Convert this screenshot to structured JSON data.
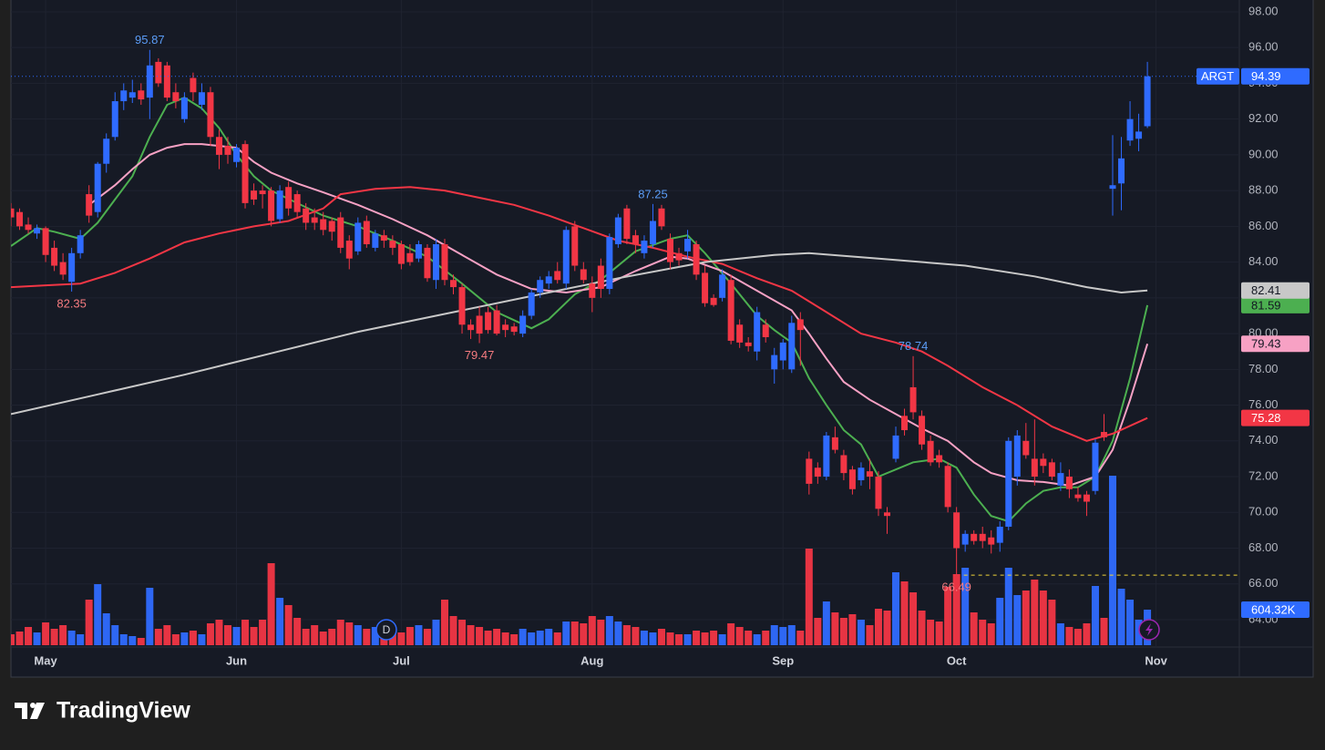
{
  "chart_data": {
    "type": "candlestick",
    "symbol": "ARGT",
    "up_color": "#2f6bff",
    "down_color": "#f23645",
    "grid": true,
    "xlim": [
      0,
      141.6
    ],
    "xticks": [
      {
        "value": 4,
        "label": "May"
      },
      {
        "value": 26,
        "label": "Jun"
      },
      {
        "value": 45,
        "label": "Jul"
      },
      {
        "value": 67,
        "label": "Aug"
      },
      {
        "value": 89,
        "label": "Sep"
      },
      {
        "value": 109,
        "label": "Oct"
      },
      {
        "value": 132,
        "label": "Nov"
      }
    ],
    "ylim": [
      62.47,
      98.66
    ],
    "yticks": [
      {
        "value": 64,
        "label": "64.00"
      },
      {
        "value": 66,
        "label": "66.00"
      },
      {
        "value": 68,
        "label": "68.00"
      },
      {
        "value": 70,
        "label": "70.00"
      },
      {
        "value": 72,
        "label": "72.00"
      },
      {
        "value": 74,
        "label": "74.00"
      },
      {
        "value": 76,
        "label": "76.00"
      },
      {
        "value": 78,
        "label": "78.00"
      },
      {
        "value": 80,
        "label": "80.00"
      },
      {
        "value": 82,
        "label": "82.00"
      },
      {
        "value": 84,
        "label": "84.00"
      },
      {
        "value": 86,
        "label": "86.00"
      },
      {
        "value": 88,
        "label": "88.00"
      },
      {
        "value": 90,
        "label": "90.00"
      },
      {
        "value": 92,
        "label": "92.00"
      },
      {
        "value": 94,
        "label": "94.00"
      },
      {
        "value": 96,
        "label": "96.00"
      },
      {
        "value": 98,
        "label": "98.00"
      }
    ],
    "candles": {
      "open": [
        87,
        86.8,
        86.1,
        85.6,
        85.9,
        84.8,
        84.0,
        82.9,
        84.5,
        87.8,
        86.8,
        89.5,
        91.0,
        93.0,
        93.2,
        93.6,
        93.2,
        95.2,
        95.0,
        93.5,
        92.0,
        94.3,
        92.8,
        93.5,
        91.0,
        90.5,
        89.6,
        90.6,
        88.0,
        88.0,
        88.0,
        86.4,
        88.2,
        87.8,
        87.0,
        86.5,
        86.4,
        86.3,
        86.5,
        85.2,
        84.6,
        86.3,
        84.8,
        85.5,
        85.2,
        85.0,
        84.5,
        84.2,
        84.8,
        83.0,
        85.0,
        83.0,
        82.6,
        80.5,
        81.0,
        81.2,
        81.3,
        80.5,
        80.4,
        80.0,
        81.0,
        82.3,
        82.8,
        83.5,
        82.8,
        86.0,
        83.6,
        82.8,
        83.8,
        82.5,
        85.0,
        87.0,
        85.5,
        84.5,
        85.0,
        87.0,
        85.3,
        84.5,
        84.6,
        85.0,
        83.4,
        82.0,
        82.0,
        83.0,
        80.5,
        79.5,
        79.0,
        80.5,
        78.0,
        78.5,
        78.0,
        80.8,
        73.0,
        72.5,
        72.0,
        74.2,
        73.2,
        72.4,
        71.8,
        72.3,
        72.0,
        70.0,
        73.0,
        75.4,
        77.0,
        75.4,
        74.0,
        73.2,
        72.6,
        70.0,
        68.2,
        68.8,
        68.8,
        68.6,
        68.3,
        69.2,
        72.0,
        74.0,
        73.0,
        73.0,
        72.8,
        71.5,
        72.0,
        71.0,
        71.0,
        71.2,
        74.5,
        88.1,
        88.4,
        90.8,
        90.9,
        91.6
      ],
      "high": [
        87.3,
        87,
        86.5,
        86.1,
        86.0,
        85.2,
        84.5,
        84.8,
        85.8,
        88.3,
        89.6,
        91.2,
        93.5,
        94.0,
        94.2,
        94.0,
        95.87,
        95.4,
        95.2,
        94.0,
        93.5,
        94.6,
        94.0,
        93.8,
        91.4,
        91.0,
        90.6,
        90.8,
        88.4,
        88.3,
        88.2,
        88.3,
        88.5,
        88.0,
        87.3,
        87.0,
        86.8,
        86.5,
        86.8,
        85.5,
        86.5,
        86.6,
        85.8,
        85.8,
        85.5,
        85.2,
        85.0,
        85.2,
        85.0,
        85.3,
        85.3,
        83.3,
        82.8,
        80.8,
        81.5,
        81.5,
        81.6,
        80.8,
        80.6,
        81.3,
        82.5,
        83.2,
        83.5,
        84.0,
        86.0,
        86.3,
        84.0,
        83.2,
        84.2,
        85.6,
        86.7,
        87.2,
        85.8,
        85.5,
        87.25,
        87.2,
        85.6,
        84.8,
        85.8,
        85.2,
        83.8,
        82.2,
        83.6,
        83.3,
        80.8,
        79.8,
        81.5,
        80.8,
        79.2,
        79.7,
        81.0,
        81.2,
        73.4,
        72.8,
        74.5,
        74.8,
        73.5,
        72.6,
        72.8,
        73.0,
        72.3,
        70.3,
        74.8,
        75.8,
        78.74,
        75.7,
        74.3,
        73.5,
        72.8,
        70.3,
        69.0,
        69.0,
        69.2,
        69.0,
        69.5,
        74.2,
        74.6,
        75.0,
        75.2,
        73.3,
        73.0,
        72.8,
        72.4,
        71.4,
        71.2,
        74.1,
        75.5,
        91.1,
        91.0,
        93.0,
        92.3,
        95.2
      ],
      "low": [
        86,
        85.8,
        85.6,
        85.3,
        84.0,
        83.5,
        83.0,
        82.35,
        84.2,
        86.2,
        86.5,
        89.0,
        90.8,
        92.5,
        92.9,
        92.8,
        92.0,
        93.8,
        93.0,
        92.6,
        91.8,
        93.0,
        92.5,
        90.5,
        89.2,
        89.5,
        89.3,
        87.0,
        87.2,
        87.0,
        86.0,
        86.2,
        86.6,
        86.5,
        85.8,
        85.8,
        85.5,
        85.2,
        84.5,
        83.6,
        84.4,
        84.8,
        84.6,
        84.8,
        84.4,
        83.6,
        83.8,
        84.0,
        82.9,
        82.5,
        82.7,
        82.2,
        80.0,
        79.7,
        79.47,
        80.0,
        79.9,
        79.8,
        79.9,
        79.8,
        80.8,
        82.0,
        82.5,
        82.8,
        82.5,
        83.5,
        82.8,
        81.2,
        82.0,
        82.2,
        84.8,
        85.0,
        84.5,
        84.2,
        84.8,
        85.8,
        83.6,
        83.8,
        84.2,
        83.0,
        81.5,
        81.5,
        81.8,
        79.4,
        79.2,
        79.0,
        78.5,
        79.5,
        77.2,
        78.0,
        77.8,
        78.2,
        71.0,
        71.6,
        71.8,
        73.3,
        71.8,
        71.0,
        71.5,
        71.3,
        69.8,
        68.8,
        72.8,
        74.3,
        75.2,
        73.5,
        72.6,
        72.5,
        70.0,
        66.49,
        67.8,
        68.2,
        68.0,
        67.7,
        67.8,
        69.0,
        71.5,
        73.0,
        71.5,
        72.2,
        71.8,
        71.2,
        70.8,
        70.6,
        69.8,
        71.0,
        74.0,
        86.6,
        86.9,
        90.5,
        90.2,
        91.5
      ],
      "close": [
        86.5,
        86.0,
        85.8,
        85.9,
        84.4,
        83.8,
        83.3,
        84.5,
        85.5,
        86.6,
        89.5,
        90.9,
        93.0,
        93.6,
        93.5,
        93.1,
        95.0,
        94.0,
        93.2,
        93.0,
        93.2,
        93.5,
        93.5,
        91.0,
        90.0,
        90.0,
        90.4,
        87.3,
        87.5,
        87.8,
        86.3,
        88.0,
        87.0,
        86.8,
        86.2,
        86.2,
        85.8,
        85.7,
        84.8,
        84.2,
        86.2,
        85.0,
        85.6,
        85.2,
        84.8,
        83.9,
        84.0,
        85.0,
        83.1,
        85.0,
        83.0,
        82.6,
        80.5,
        80.2,
        80.0,
        80.2,
        80.0,
        80.2,
        80.1,
        81.0,
        82.3,
        83.0,
        83.2,
        83.0,
        85.8,
        83.8,
        83.0,
        82.0,
        82.5,
        85.4,
        86.5,
        85.3,
        85.0,
        85.2,
        86.3,
        86.0,
        84.0,
        84.1,
        85.3,
        83.3,
        81.7,
        81.6,
        83.3,
        79.6,
        79.5,
        79.3,
        81.2,
        79.8,
        78.8,
        79.5,
        80.6,
        80.2,
        71.6,
        72.0,
        74.3,
        73.5,
        72.2,
        71.3,
        72.5,
        72.0,
        70.2,
        69.8,
        74.3,
        74.6,
        75.6,
        73.8,
        72.8,
        72.8,
        70.3,
        68.0,
        68.8,
        68.4,
        68.4,
        68.2,
        69.2,
        74.0,
        74.3,
        73.2,
        72.0,
        72.6,
        72.0,
        72.2,
        71.3,
        70.8,
        70.6,
        73.9,
        74.2,
        88.3,
        89.8,
        92.0,
        91.3,
        94.39
      ]
    },
    "volume": {
      "ylim": [
        0,
        3875000
      ],
      "values": [
        186000,
        232500,
        310000,
        217000,
        387500,
        279000,
        341000,
        248000,
        186000,
        775000,
        1038500,
        542500,
        341000,
        186000,
        155000,
        124000,
        976500,
        279000,
        341000,
        186000,
        217000,
        248000,
        186000,
        372000,
        434000,
        341000,
        310000,
        434000,
        310000,
        434000,
        1395000,
        806000,
        682000,
        465000,
        279000,
        341000,
        232500,
        279000,
        434000,
        387500,
        341000,
        279000,
        310000,
        217000,
        279000,
        217000,
        310000,
        341000,
        279000,
        434000,
        775000,
        496000,
        434000,
        341000,
        310000,
        248000,
        279000,
        217000,
        186000,
        279000,
        217000,
        248000,
        279000,
        217000,
        403000,
        403000,
        372000,
        496000,
        434000,
        496000,
        403000,
        341000,
        310000,
        248000,
        217000,
        279000,
        217000,
        186000,
        186000,
        248000,
        217000,
        248000,
        186000,
        372000,
        310000,
        248000,
        186000,
        248000,
        341000,
        310000,
        341000,
        248000,
        1643000,
        465000,
        744000,
        558000,
        465000,
        527000,
        434000,
        341000,
        620000,
        589000,
        1240000,
        1085000,
        899000,
        589000,
        434000,
        403000,
        992000,
        1209000,
        1317500,
        558000,
        434000,
        372000,
        806000,
        1317500,
        852500,
        930000,
        1116000,
        930000,
        775000,
        372000,
        310000,
        279000,
        372000,
        1007500,
        465000,
        2883000,
        961000,
        775000,
        434000,
        604320
      ],
      "last_label": "604.32K"
    },
    "lines": [
      {
        "color": "#4caf50",
        "x": [
          0,
          3,
          5,
          8,
          10,
          12,
          14,
          16,
          18,
          20,
          22,
          24,
          26,
          28,
          30,
          33,
          36,
          40,
          44,
          48,
          52,
          56,
          60,
          62,
          65,
          68,
          72,
          76,
          78,
          80,
          83,
          86,
          88,
          90,
          92,
          94,
          96,
          98,
          100,
          102,
          104,
          107,
          109,
          111,
          113,
          115,
          117,
          119,
          121,
          123,
          125,
          127,
          129,
          131
        ],
        "values": [
          84.9,
          85.9,
          85.7,
          85.3,
          86.2,
          87.5,
          88.8,
          91.0,
          92.8,
          93.2,
          92.6,
          91.5,
          90.0,
          88.8,
          88.0,
          87.3,
          86.6,
          86.0,
          85.2,
          84.3,
          82.8,
          81.2,
          80.3,
          80.8,
          82.2,
          83.0,
          84.6,
          85.3,
          85.5,
          84.5,
          82.8,
          81.0,
          80.2,
          79.5,
          77.5,
          76.0,
          74.6,
          73.8,
          72.0,
          72.4,
          72.8,
          73.0,
          72.5,
          71.0,
          69.8,
          69.5,
          70.5,
          71.2,
          71.4,
          71.4,
          72.0,
          74.0,
          77.5,
          81.59
        ]
      },
      {
        "color": "#f7a1c4",
        "x": [
          9,
          12,
          14,
          16,
          18,
          20,
          22,
          24,
          26,
          28,
          30,
          33,
          36,
          40,
          44,
          48,
          52,
          56,
          60,
          64,
          68,
          72,
          76,
          78,
          82,
          86,
          90,
          92,
          94,
          96,
          99,
          102,
          105,
          108,
          111,
          113,
          116,
          119,
          122,
          125,
          127,
          129,
          131
        ],
        "values": [
          87.2,
          88.3,
          89.2,
          90.0,
          90.4,
          90.6,
          90.6,
          90.5,
          90.4,
          89.6,
          89.0,
          88.4,
          87.9,
          87.2,
          86.4,
          85.5,
          84.4,
          83.3,
          82.5,
          82.3,
          82.6,
          83.5,
          84.3,
          84.2,
          83.5,
          82.4,
          81.3,
          80.0,
          78.6,
          77.3,
          76.3,
          75.5,
          74.7,
          74.0,
          72.8,
          72.2,
          71.8,
          71.7,
          71.5,
          72.0,
          73.5,
          76.3,
          79.43
        ]
      },
      {
        "color": "#f23645",
        "x": [
          0,
          4,
          8,
          12,
          16,
          20,
          24,
          28,
          32,
          36,
          38,
          42,
          46,
          50,
          54,
          58,
          62,
          66,
          70,
          74,
          78,
          82,
          86,
          90,
          94,
          98,
          102,
          105,
          108,
          112,
          116,
          120,
          124,
          127,
          131
        ],
        "values": [
          82.6,
          82.7,
          82.8,
          83.4,
          84.2,
          85.1,
          85.6,
          86.0,
          86.3,
          87.0,
          87.8,
          88.1,
          88.2,
          88.0,
          87.6,
          87.2,
          86.6,
          85.9,
          85.2,
          84.8,
          84.3,
          83.9,
          83.1,
          82.4,
          81.2,
          80.0,
          79.5,
          79.0,
          78.2,
          77.0,
          76.0,
          74.8,
          74.0,
          74.4,
          75.28
        ]
      },
      {
        "color": "#c8c8c8",
        "x": [
          0,
          10,
          20,
          30,
          40,
          50,
          60,
          70,
          80,
          88,
          92,
          100,
          110,
          118,
          124,
          128,
          131
        ],
        "values": [
          75.5,
          76.6,
          77.7,
          78.9,
          80.1,
          81.1,
          82.1,
          83.1,
          84.0,
          84.4,
          84.5,
          84.2,
          83.8,
          83.2,
          82.6,
          82.3,
          82.41
        ]
      }
    ],
    "dividend_marker": "D"
  },
  "footer": {
    "brand": "TradingView"
  }
}
